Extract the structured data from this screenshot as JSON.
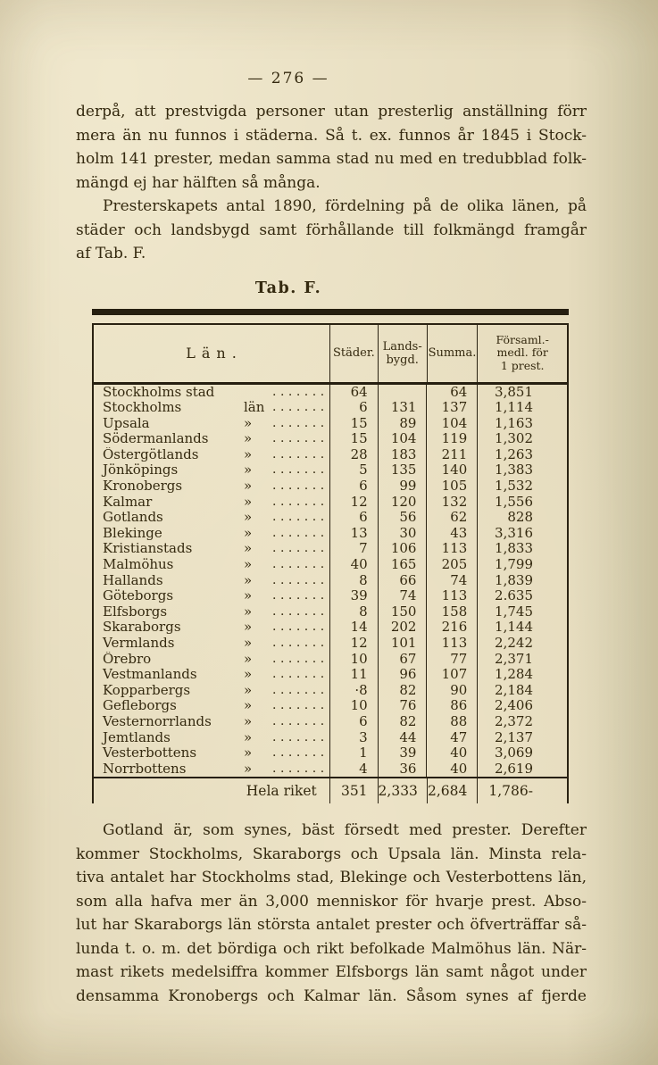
{
  "page": {
    "number": "— 276 —"
  },
  "paragraphs": {
    "p1": [
      "derpå, att prestvigda personer utan presterlig anställning förr",
      "mera än nu funnos i städerna.  Så t. ex. funnos år 1845 i Stock-",
      "holm 141 prester, medan samma stad nu med en tredubblad folk-",
      "mängd ej har hälften så många."
    ],
    "p2": [
      "Presterskapets antal 1890, fördelning på de olika länen, på",
      "städer och landsbygd samt förhållande till folkmängd framgår",
      "af Tab. F."
    ],
    "p3": [
      "Gotland är, som synes, bäst försedt med prester.  Derefter",
      "kommer Stockholms, Skaraborgs och Upsala län.  Minsta rela-",
      "tiva antalet har Stockholms stad, Blekinge och Vesterbottens län,",
      "som alla hafva mer än 3,000 menniskor för hvarje prest.  Abso-",
      "lut har Skaraborgs län största antalet prester och öfverträffar så-",
      "lunda t. o. m. det bördiga och rikt befolkade Malmöhus län.  När-",
      "mast rikets medelsiffra kommer Elfsborgs län samt något under",
      "densamma Kronobergs och Kalmar län.  Såsom synes af fjerde"
    ]
  },
  "table": {
    "title": "Tab. F.",
    "headers": {
      "lan": "Län.",
      "stader": "Städer.",
      "landsbygd": "Lands-\nbygd.",
      "summa": "Summa.",
      "medl": "Församl.-\nmedl. för\n1 prest."
    },
    "rows": [
      {
        "name": "Stockholms stad",
        "mark": "",
        "stader": "64",
        "landsbygd": "",
        "summa": "64",
        "medl": "3,851"
      },
      {
        "name": "Stockholms",
        "mark": "län",
        "stader": "6",
        "landsbygd": "131",
        "summa": "137",
        "medl": "1,114"
      },
      {
        "name": "Upsala",
        "mark": "»",
        "stader": "15",
        "landsbygd": "89",
        "summa": "104",
        "medl": "1,163"
      },
      {
        "name": "Södermanlands",
        "mark": "»",
        "stader": "15",
        "landsbygd": "104",
        "summa": "119",
        "medl": "1,302"
      },
      {
        "name": "Östergötlands",
        "mark": "»",
        "stader": "28",
        "landsbygd": "183",
        "summa": "211",
        "medl": "1,263"
      },
      {
        "name": "Jönköpings",
        "mark": "»",
        "stader": "5",
        "landsbygd": "135",
        "summa": "140",
        "medl": "1,383"
      },
      {
        "name": "Kronobergs",
        "mark": "»",
        "stader": "6",
        "landsbygd": "99",
        "summa": "105",
        "medl": "1,532"
      },
      {
        "name": "Kalmar",
        "mark": "»",
        "stader": "12",
        "landsbygd": "120",
        "summa": "132",
        "medl": "1,556"
      },
      {
        "name": "Gotlands",
        "mark": "»",
        "stader": "6",
        "landsbygd": "56",
        "summa": "62",
        "medl": "828"
      },
      {
        "name": "Blekinge",
        "mark": "»",
        "stader": "13",
        "landsbygd": "30",
        "summa": "43",
        "medl": "3,316"
      },
      {
        "name": "Kristianstads",
        "mark": "»",
        "stader": "7",
        "landsbygd": "106",
        "summa": "113",
        "medl": "1,833"
      },
      {
        "name": "Malmöhus",
        "mark": "»",
        "stader": "40",
        "landsbygd": "165",
        "summa": "205",
        "medl": "1,799"
      },
      {
        "name": "Hallands",
        "mark": "»",
        "stader": "8",
        "landsbygd": "66",
        "summa": "74",
        "medl": "1,839"
      },
      {
        "name": "Göteborgs",
        "mark": "»",
        "stader": "39",
        "landsbygd": "74",
        "summa": "113",
        "medl": "2.635"
      },
      {
        "name": "Elfsborgs",
        "mark": "»",
        "stader": "8",
        "landsbygd": "150",
        "summa": "158",
        "medl": "1,745"
      },
      {
        "name": "Skaraborgs",
        "mark": "»",
        "stader": "14",
        "landsbygd": "202",
        "summa": "216",
        "medl": "1,144"
      },
      {
        "name": "Vermlands",
        "mark": "»",
        "stader": "12",
        "landsbygd": "101",
        "summa": "113",
        "medl": "2,242"
      },
      {
        "name": "Örebro",
        "mark": "»",
        "stader": "10",
        "landsbygd": "67",
        "summa": "77",
        "medl": "2,371"
      },
      {
        "name": "Vestmanlands",
        "mark": "»",
        "stader": "11",
        "landsbygd": "96",
        "summa": "107",
        "medl": "1,284"
      },
      {
        "name": "Kopparbergs",
        "mark": "»",
        "stader": "·8",
        "landsbygd": "82",
        "summa": "90",
        "medl": "2,184"
      },
      {
        "name": "Gefleborgs",
        "mark": "»",
        "stader": "10",
        "landsbygd": "76",
        "summa": "86",
        "medl": "2,406"
      },
      {
        "name": "Vesternorrlands",
        "mark": "»",
        "stader": "6",
        "landsbygd": "82",
        "summa": "88",
        "medl": "2,372"
      },
      {
        "name": "Jemtlands",
        "mark": "»",
        "stader": "3",
        "landsbygd": "44",
        "summa": "47",
        "medl": "2,137"
      },
      {
        "name": "Vesterbottens",
        "mark": "»",
        "stader": "1",
        "landsbygd": "39",
        "summa": "40",
        "medl": "3,069"
      },
      {
        "name": "Norrbottens",
        "mark": "»",
        "stader": "4",
        "landsbygd": "36",
        "summa": "40",
        "medl": "2,619"
      }
    ],
    "total": {
      "label": "Hela riket",
      "stader": "351",
      "landsbygd": "2,333",
      "summa": "2,684",
      "medl": "1,786-"
    },
    "dot_leader": "....................."
  }
}
